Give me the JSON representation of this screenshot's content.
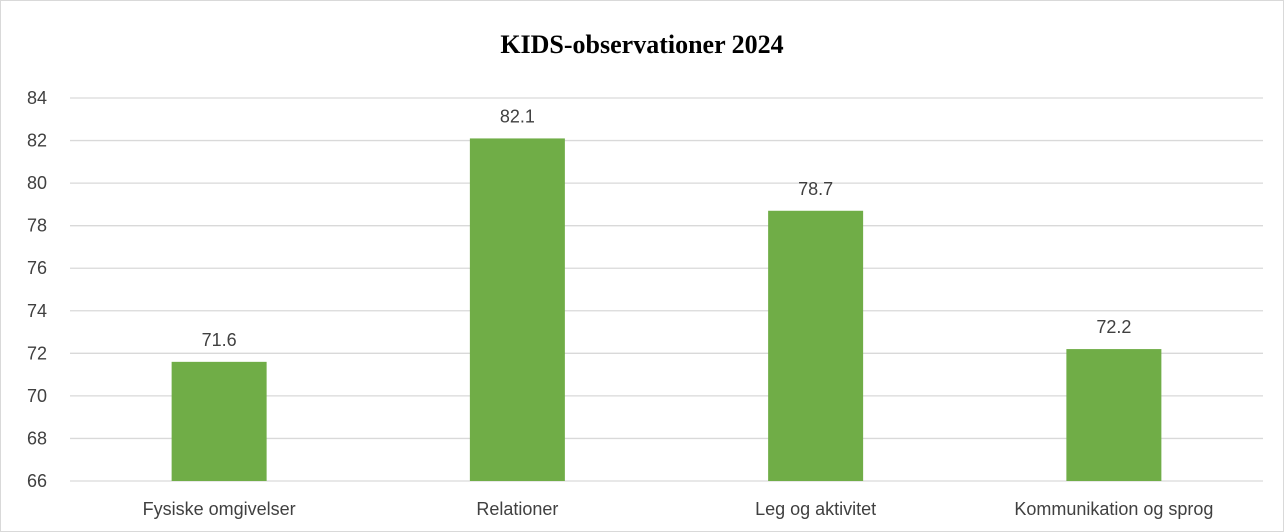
{
  "chart_data": {
    "type": "bar",
    "title": "KIDS-observationer 2024",
    "xlabel": "",
    "ylabel": "",
    "categories": [
      "Fysiske omgivelser",
      "Relationer",
      "Leg og aktivitet",
      "Kommunikation og sprog"
    ],
    "values": [
      71.6,
      82.1,
      78.7,
      72.2
    ],
    "data_labels": [
      "71.6",
      "82.1",
      "78.7",
      "72.2"
    ],
    "ylim": [
      66,
      84
    ],
    "yticks": [
      66,
      68,
      70,
      72,
      74,
      76,
      78,
      80,
      82,
      84
    ],
    "grid": true,
    "legend": "none",
    "bar_color": "#70AD47",
    "grid_color": "#D9D9D9"
  }
}
